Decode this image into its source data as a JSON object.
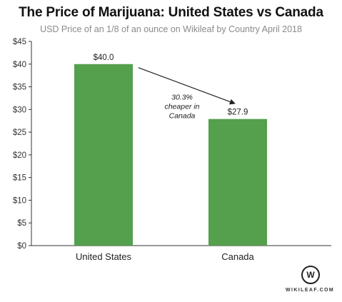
{
  "chart_data": {
    "type": "bar",
    "title": "The Price of Marijuana: United States vs Canada",
    "subtitle": "USD Price of an 1/8 of an ounce on Wikileaf by Country April 2018",
    "categories": [
      "United States",
      "Canada"
    ],
    "values": [
      40.0,
      27.9
    ],
    "data_labels": [
      "$40.0",
      "$27.9"
    ],
    "ylim": [
      0,
      45
    ],
    "yticks": [
      0,
      5,
      10,
      15,
      20,
      25,
      30,
      35,
      40,
      45
    ],
    "ytick_labels": [
      "$0",
      "$5",
      "$10",
      "$15",
      "$20",
      "$25",
      "$30",
      "$35",
      "$40",
      "$45"
    ],
    "xlabel": "",
    "ylabel": "",
    "grid": false,
    "bar_color": "#54a04c",
    "annotation": {
      "lines": [
        "30.3%",
        "cheaper in",
        "Canada"
      ]
    }
  },
  "watermark": {
    "letter": "W",
    "text": "WIKILEAF.COM"
  }
}
